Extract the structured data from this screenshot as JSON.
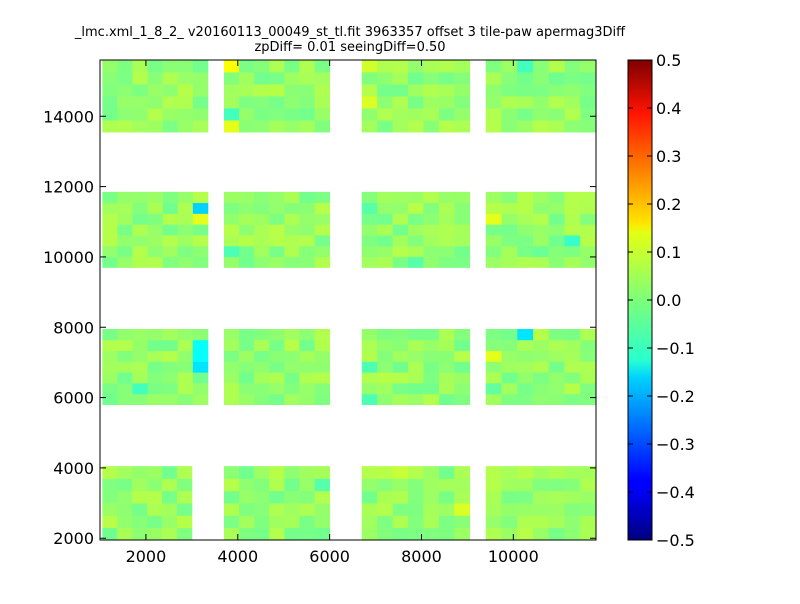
{
  "chart_data": {
    "type": "heatmap",
    "title_line1": "_lmc.xml_1_8_2_ v20160113_00049_st_tl.fit 3963357 offset 3 tile-paw apermag3Diff",
    "title_line2": "zpDiff= 0.01 seeingDiff=0.50",
    "xlim": [
      1000,
      11800
    ],
    "ylim": [
      1950,
      15600
    ],
    "x_ticks": [
      2000,
      4000,
      6000,
      8000,
      10000
    ],
    "y_ticks": [
      2000,
      4000,
      6000,
      8000,
      10000,
      12000,
      14000
    ],
    "colorbar": {
      "colormap": "jet",
      "range": [
        -0.5,
        0.5
      ],
      "ticks": [
        "0.5",
        "0.4",
        "0.3",
        "0.2",
        "0.1",
        "0.0",
        "−0.1",
        "−0.2",
        "−0.3",
        "−0.4",
        "−0.5"
      ]
    },
    "cell_size": [
      350,
      330
    ],
    "typical_value": 0.02,
    "blocks": [
      {
        "x": [
          1050,
          3000
        ],
        "y": [
          1950,
          4050
        ]
      },
      {
        "x": [
          3700,
          6000
        ],
        "y": [
          1950,
          4050
        ]
      },
      {
        "x": [
          6700,
          9050
        ],
        "y": [
          1950,
          4050
        ]
      },
      {
        "x": [
          9400,
          11800
        ],
        "y": [
          1950,
          4050
        ]
      },
      {
        "x": [
          1050,
          3350
        ],
        "y": [
          5800,
          7950
        ]
      },
      {
        "x": [
          3700,
          6000
        ],
        "y": [
          5800,
          7950
        ]
      },
      {
        "x": [
          6700,
          9050
        ],
        "y": [
          5800,
          7950
        ]
      },
      {
        "x": [
          9400,
          11800
        ],
        "y": [
          5800,
          7950
        ]
      },
      {
        "x": [
          1050,
          3350
        ],
        "y": [
          9700,
          11850
        ]
      },
      {
        "x": [
          3700,
          6000
        ],
        "y": [
          9700,
          11850
        ]
      },
      {
        "x": [
          6700,
          9050
        ],
        "y": [
          9700,
          11850
        ]
      },
      {
        "x": [
          9400,
          11800
        ],
        "y": [
          9700,
          11850
        ]
      },
      {
        "x": [
          1050,
          3350
        ],
        "y": [
          13550,
          15600
        ]
      },
      {
        "x": [
          3700,
          6000
        ],
        "y": [
          13550,
          15600
        ]
      },
      {
        "x": [
          6700,
          9050
        ],
        "y": [
          13550,
          15600
        ]
      },
      {
        "x": [
          9400,
          11800
        ],
        "y": [
          13550,
          15600
        ]
      }
    ],
    "highlight_cells": [
      {
        "x": 3200,
        "y": 11400,
        "value": -0.17
      },
      {
        "x": 3200,
        "y": 7550,
        "value": -0.12
      },
      {
        "x": 3200,
        "y": 7150,
        "value": -0.12
      },
      {
        "x": 3200,
        "y": 6750,
        "value": -0.15
      },
      {
        "x": 10250,
        "y": 7650,
        "value": -0.15
      },
      {
        "x": 3200,
        "y": 10950,
        "value": 0.1
      },
      {
        "x": 9500,
        "y": 10950,
        "value": 0.1
      },
      {
        "x": 9500,
        "y": 7150,
        "value": 0.1
      },
      {
        "x": 3850,
        "y": 15350,
        "value": 0.12
      },
      {
        "x": 3850,
        "y": 13750,
        "value": 0.1
      },
      {
        "x": 6850,
        "y": 15350,
        "value": 0.08
      },
      {
        "x": 6850,
        "y": 14550,
        "value": 0.09
      },
      {
        "x": 8800,
        "y": 2950,
        "value": 0.09
      },
      {
        "x": 7700,
        "y": 3850,
        "value": 0.07
      },
      {
        "x": 3850,
        "y": 14150,
        "value": -0.06
      },
      {
        "x": 3850,
        "y": 10150,
        "value": -0.05
      },
      {
        "x": 10250,
        "y": 15350,
        "value": -0.06
      },
      {
        "x": 11200,
        "y": 10550,
        "value": -0.07
      },
      {
        "x": 1800,
        "y": 6350,
        "value": -0.06
      },
      {
        "x": 6000,
        "y": 6050,
        "value": -0.05
      },
      {
        "x": 5850,
        "y": 3650,
        "value": -0.04
      },
      {
        "x": 6850,
        "y": 6050,
        "value": -0.05
      },
      {
        "x": 6850,
        "y": 6850,
        "value": -0.05
      },
      {
        "x": 7800,
        "y": 9850,
        "value": -0.04
      },
      {
        "x": 6850,
        "y": 11400,
        "value": -0.04
      },
      {
        "x": 10650,
        "y": 10150,
        "value": -0.02
      },
      {
        "x": 9650,
        "y": 6350,
        "value": -0.03
      }
    ]
  }
}
